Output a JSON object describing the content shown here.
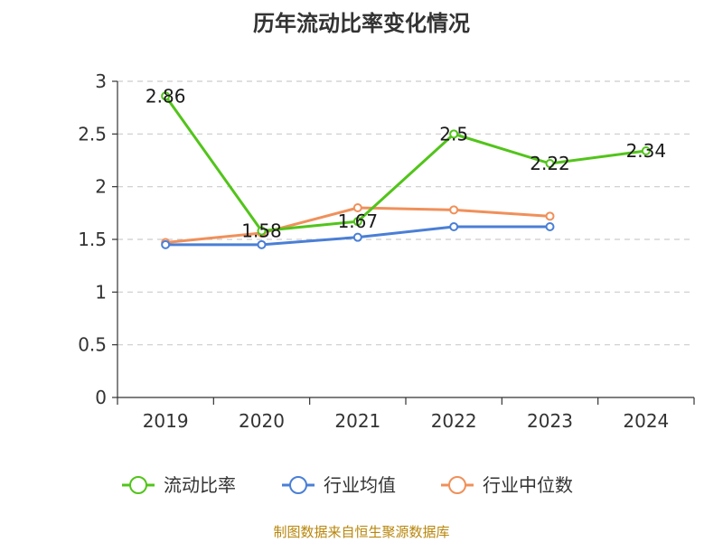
{
  "chart_data": {
    "type": "line",
    "title": "历年流动比率变化情况",
    "categories": [
      "2019",
      "2020",
      "2021",
      "2022",
      "2023",
      "2024"
    ],
    "ylim": [
      0,
      3
    ],
    "yticks": [
      0,
      0.5,
      1,
      1.5,
      2,
      2.5,
      3
    ],
    "ytick_labels": [
      "0",
      "0.5",
      "1",
      "1.5",
      "2",
      "2.5",
      "3"
    ],
    "grid": true,
    "legend_position": "bottom",
    "series": [
      {
        "name": "流动比率",
        "color": "#52c41a",
        "values": [
          2.86,
          1.58,
          1.67,
          2.5,
          2.22,
          2.34
        ],
        "labels": [
          "2.86",
          "1.58",
          "1.67",
          "2.5",
          "2.22",
          "2.34"
        ]
      },
      {
        "name": "行业均值",
        "color": "#4a7fd6",
        "values": [
          1.45,
          1.45,
          1.52,
          1.62,
          1.62,
          null
        ]
      },
      {
        "name": "行业中位数",
        "color": "#f0905a",
        "values": [
          1.47,
          1.56,
          1.8,
          1.78,
          1.72,
          null
        ]
      }
    ]
  },
  "footer": "制图数据来自恒生聚源数据库"
}
